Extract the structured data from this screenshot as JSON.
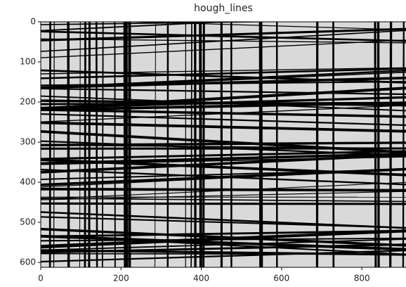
{
  "chart_data": {
    "type": "image",
    "title": "hough_lines",
    "xlim": [
      0,
      910
    ],
    "ylim": [
      612,
      0
    ],
    "xticks": [
      0,
      200,
      400,
      600,
      800
    ],
    "yticks": [
      0,
      100,
      200,
      300,
      400,
      500,
      600
    ]
  }
}
